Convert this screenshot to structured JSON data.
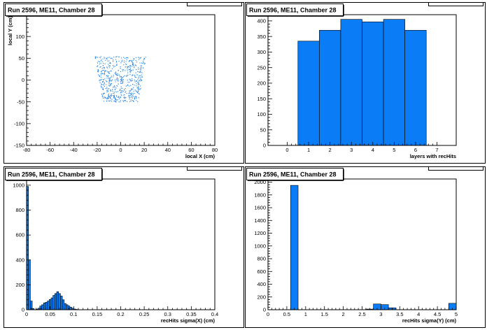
{
  "colors": {
    "fill": "#0a7cf5",
    "marker": "#1a7fe0",
    "frame": "#000000"
  },
  "chart_data": [
    {
      "type": "scatter",
      "title": "Run 2596, ME11, Chamber 28",
      "xlabel": "local X (cm)",
      "ylabel": "local Y (cm)",
      "xlim": [
        -80,
        80
      ],
      "ylim": [
        -150,
        150
      ],
      "xticks": [
        -80,
        -60,
        -40,
        -20,
        0,
        20,
        40,
        60,
        80
      ],
      "yticks": [
        -150,
        -100,
        -50,
        0,
        50,
        100,
        150
      ],
      "cluster": {
        "x_top": [
          -22,
          22
        ],
        "x_bottom": [
          -15,
          15
        ],
        "y_range": [
          -50,
          55
        ]
      },
      "points": [
        [
          -20,
          52
        ],
        [
          -12,
          50
        ],
        [
          -4,
          53
        ],
        [
          6,
          51
        ],
        [
          15,
          52
        ],
        [
          20,
          50
        ],
        [
          -18,
          42
        ],
        [
          -9,
          40
        ],
        [
          1,
          43
        ],
        [
          10,
          41
        ],
        [
          18,
          39
        ],
        [
          -20,
          31
        ],
        [
          -14,
          29
        ],
        [
          -5,
          32
        ],
        [
          4,
          30
        ],
        [
          13,
          33
        ],
        [
          19,
          28
        ],
        [
          -19,
          21
        ],
        [
          -10,
          19
        ],
        [
          -2,
          22
        ],
        [
          8,
          20
        ],
        [
          16,
          18
        ],
        [
          -18,
          10
        ],
        [
          -11,
          8
        ],
        [
          -3,
          11
        ],
        [
          5,
          9
        ],
        [
          14,
          12
        ],
        [
          18,
          7
        ],
        [
          -17,
          0
        ],
        [
          -8,
          -2
        ],
        [
          0,
          1
        ],
        [
          9,
          -1
        ],
        [
          17,
          2
        ],
        [
          -16,
          -10
        ],
        [
          -10,
          -12
        ],
        [
          -2,
          -9
        ],
        [
          6,
          -11
        ],
        [
          15,
          -8
        ],
        [
          -15,
          -20
        ],
        [
          -7,
          -22
        ],
        [
          1,
          -19
        ],
        [
          9,
          -21
        ],
        [
          15,
          -18
        ],
        [
          -14,
          -30
        ],
        [
          -8,
          -32
        ],
        [
          0,
          -29
        ],
        [
          7,
          -31
        ],
        [
          14,
          -28
        ],
        [
          -13,
          -40
        ],
        [
          -5,
          -42
        ],
        [
          3,
          -39
        ],
        [
          10,
          -41
        ],
        [
          13,
          -38
        ],
        [
          -12,
          -48
        ],
        [
          -4,
          -50
        ],
        [
          4,
          -47
        ],
        [
          11,
          -49
        ]
      ]
    },
    {
      "type": "bar",
      "title": "Run 2596, ME11, Chamber 28",
      "xlabel": "layers with recHits",
      "ylabel": "",
      "xlim": [
        -0.9,
        7.9
      ],
      "ylim": [
        0,
        420
      ],
      "xticks": [
        0,
        1,
        2,
        3,
        4,
        5,
        6,
        7
      ],
      "yticks": [
        0,
        50,
        100,
        150,
        200,
        250,
        300,
        350,
        400
      ],
      "bin_width": 1,
      "categories": [
        1,
        2,
        3,
        4,
        5,
        6
      ],
      "values": [
        335,
        370,
        405,
        397,
        405,
        370
      ]
    },
    {
      "type": "bar",
      "title": "Run 2596, ME11, Chamber 28",
      "xlabel": "recHits sigma(X) (cm)",
      "ylabel": "",
      "xlim": [
        0,
        0.4
      ],
      "ylim": [
        0,
        1050
      ],
      "xticks": [
        0,
        0.05,
        0.1,
        0.15,
        0.2,
        0.25,
        0.3,
        0.35,
        0.4
      ],
      "yticks": [
        0,
        200,
        400,
        600,
        800,
        1000
      ],
      "bin_width": 0.004,
      "categories": [
        0,
        0.004,
        0.008,
        0.012,
        0.016,
        0.02,
        0.024,
        0.028,
        0.032,
        0.036,
        0.04,
        0.044,
        0.048,
        0.052,
        0.056,
        0.06,
        0.064,
        0.068,
        0.072,
        0.076,
        0.08,
        0.084,
        0.088,
        0.092,
        0.096,
        0.1,
        0.104
      ],
      "values": [
        990,
        400,
        70,
        10,
        0,
        5,
        12,
        30,
        40,
        55,
        60,
        70,
        82,
        95,
        115,
        130,
        145,
        130,
        110,
        80,
        50,
        40,
        30,
        20,
        12,
        6,
        3
      ]
    },
    {
      "type": "bar",
      "title": "Run 2596, ME11, Chamber 28",
      "xlabel": "recHits sigma(Y) (cm)",
      "ylabel": "",
      "xlim": [
        0,
        5
      ],
      "ylim": [
        0,
        2050
      ],
      "xticks": [
        0,
        0.5,
        1,
        1.5,
        2,
        2.5,
        3,
        3.5,
        4,
        4.5,
        5
      ],
      "yticks": [
        0,
        200,
        400,
        600,
        800,
        1000,
        1200,
        1400,
        1600,
        1800,
        2000
      ],
      "bin_width": 0.2,
      "categories": [
        0.6,
        2.6,
        2.8,
        3.0,
        3.2,
        4.8
      ],
      "values": [
        1950,
        10,
        90,
        80,
        30,
        100
      ]
    }
  ]
}
